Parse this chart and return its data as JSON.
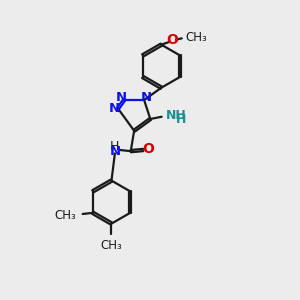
{
  "bg_color": "#ececec",
  "bond_color": "#1a1a1a",
  "n_color": "#1010ee",
  "o_color": "#dd0000",
  "teal_color": "#1a9090",
  "lw": 1.6,
  "dbo": 0.055,
  "xlim": [
    0,
    10
  ],
  "ylim": [
    0,
    13
  ]
}
